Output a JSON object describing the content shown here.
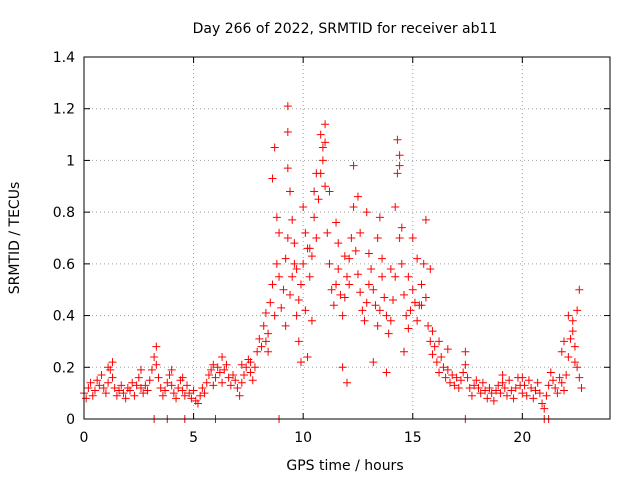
{
  "chart_data": {
    "type": "scatter",
    "title": "Day 266 of 2022, SRMTID for receiver ab11",
    "xlabel": "GPS time / hours",
    "ylabel": "SRMTID / TECUs",
    "xlim": [
      0,
      24
    ],
    "ylim": [
      0,
      1.4
    ],
    "x_ticks": [
      0,
      5,
      10,
      15,
      20
    ],
    "x_tick_labels": [
      "0",
      "5",
      "10",
      "15",
      "20"
    ],
    "y_ticks": [
      0,
      0.2,
      0.4,
      0.6,
      0.8,
      1.0,
      1.2,
      1.4
    ],
    "y_tick_labels": [
      "0",
      "0.2",
      "0.4",
      "0.6",
      "0.8",
      "1",
      "1.2",
      "1.4"
    ],
    "grid": true,
    "marker": "+",
    "series": [
      {
        "name": "SRMTID",
        "color": "#ff0000",
        "points": [
          [
            0.0,
            0.1
          ],
          [
            0.1,
            0.08
          ],
          [
            0.2,
            0.12
          ],
          [
            0.3,
            0.14
          ],
          [
            0.4,
            0.09
          ],
          [
            0.5,
            0.11
          ],
          [
            0.6,
            0.15
          ],
          [
            0.7,
            0.13
          ],
          [
            0.8,
            0.17
          ],
          [
            0.9,
            0.12
          ],
          [
            1.0,
            0.1
          ],
          [
            1.1,
            0.14
          ],
          [
            1.2,
            0.19
          ],
          [
            1.3,
            0.16
          ],
          [
            1.4,
            0.12
          ],
          [
            1.5,
            0.09
          ],
          [
            1.6,
            0.11
          ],
          [
            1.7,
            0.13
          ],
          [
            1.8,
            0.1
          ],
          [
            1.9,
            0.08
          ],
          [
            2.0,
            0.12
          ],
          [
            2.1,
            0.11
          ],
          [
            2.2,
            0.14
          ],
          [
            2.3,
            0.09
          ],
          [
            2.4,
            0.13
          ],
          [
            2.5,
            0.16
          ],
          [
            2.6,
            0.12
          ],
          [
            2.7,
            0.1
          ],
          [
            2.8,
            0.13
          ],
          [
            2.9,
            0.11
          ],
          [
            3.0,
            0.15
          ],
          [
            3.1,
            0.19
          ],
          [
            3.2,
            0.24
          ],
          [
            3.3,
            0.28
          ],
          [
            3.4,
            0.16
          ],
          [
            3.5,
            0.12
          ],
          [
            3.6,
            0.09
          ],
          [
            3.7,
            0.11
          ],
          [
            3.8,
            0.14
          ],
          [
            3.9,
            0.17
          ],
          [
            4.0,
            0.13
          ],
          [
            4.1,
            0.1
          ],
          [
            4.2,
            0.08
          ],
          [
            4.3,
            0.12
          ],
          [
            4.4,
            0.15
          ],
          [
            4.5,
            0.11
          ],
          [
            4.6,
            0.09
          ],
          [
            4.7,
            0.13
          ],
          [
            4.8,
            0.1
          ],
          [
            4.9,
            0.08
          ],
          [
            5.0,
            0.11
          ],
          [
            5.1,
            0.07
          ],
          [
            5.2,
            0.06
          ],
          [
            5.3,
            0.09
          ],
          [
            5.4,
            0.12
          ],
          [
            5.5,
            0.1
          ],
          [
            5.6,
            0.14
          ],
          [
            5.7,
            0.17
          ],
          [
            5.8,
            0.19
          ],
          [
            5.9,
            0.13
          ],
          [
            6.0,
            0.16
          ],
          [
            6.1,
            0.2
          ],
          [
            6.2,
            0.18
          ],
          [
            6.3,
            0.14
          ],
          [
            6.4,
            0.19
          ],
          [
            6.5,
            0.21
          ],
          [
            6.6,
            0.16
          ],
          [
            6.7,
            0.13
          ],
          [
            6.8,
            0.17
          ],
          [
            6.9,
            0.15
          ],
          [
            7.0,
            0.12
          ],
          [
            7.1,
            0.09
          ],
          [
            7.2,
            0.14
          ],
          [
            7.3,
            0.17
          ],
          [
            7.4,
            0.2
          ],
          [
            7.5,
            0.23
          ],
          [
            7.6,
            0.18
          ],
          [
            7.7,
            0.15
          ],
          [
            7.8,
            0.2
          ],
          [
            7.9,
            0.26
          ],
          [
            8.0,
            0.31
          ],
          [
            8.1,
            0.28
          ],
          [
            8.2,
            0.36
          ],
          [
            8.3,
            0.41
          ],
          [
            8.4,
            0.33
          ],
          [
            8.5,
            0.45
          ],
          [
            8.6,
            0.52
          ],
          [
            8.7,
            0.4
          ],
          [
            8.8,
            0.6
          ],
          [
            8.9,
            0.55
          ],
          [
            9.0,
            0.43
          ],
          [
            9.1,
            0.5
          ],
          [
            9.2,
            0.62
          ],
          [
            9.3,
            0.7
          ],
          [
            9.4,
            0.48
          ],
          [
            9.5,
            0.55
          ],
          [
            9.6,
            0.68
          ],
          [
            9.7,
            0.58
          ],
          [
            9.8,
            0.46
          ],
          [
            9.9,
            0.52
          ],
          [
            10.0,
            0.6
          ],
          [
            10.1,
            0.72
          ],
          [
            10.2,
            0.66
          ],
          [
            10.3,
            0.55
          ],
          [
            10.4,
            0.63
          ],
          [
            10.5,
            0.78
          ],
          [
            10.6,
            0.7
          ],
          [
            10.7,
            0.85
          ],
          [
            10.8,
            0.95
          ],
          [
            10.9,
            1.05
          ],
          [
            11.0,
            0.9
          ],
          [
            11.1,
            0.72
          ],
          [
            11.2,
            0.6
          ],
          [
            11.3,
            0.5
          ],
          [
            11.4,
            0.44
          ],
          [
            11.5,
            0.52
          ],
          [
            11.6,
            0.58
          ],
          [
            11.7,
            0.48
          ],
          [
            11.8,
            0.4
          ],
          [
            11.9,
            0.47
          ],
          [
            12.0,
            0.55
          ],
          [
            12.1,
            0.62
          ],
          [
            12.2,
            0.7
          ],
          [
            12.3,
            0.82
          ],
          [
            12.4,
            0.65
          ],
          [
            12.5,
            0.56
          ],
          [
            12.6,
            0.49
          ],
          [
            12.7,
            0.42
          ],
          [
            12.8,
            0.38
          ],
          [
            12.9,
            0.45
          ],
          [
            13.0,
            0.52
          ],
          [
            13.1,
            0.58
          ],
          [
            13.2,
            0.5
          ],
          [
            13.3,
            0.44
          ],
          [
            13.4,
            0.36
          ],
          [
            13.5,
            0.42
          ],
          [
            13.6,
            0.55
          ],
          [
            13.7,
            0.47
          ],
          [
            13.8,
            0.4
          ],
          [
            13.9,
            0.33
          ],
          [
            14.0,
            0.38
          ],
          [
            14.1,
            0.46
          ],
          [
            14.2,
            0.55
          ],
          [
            14.3,
            0.95
          ],
          [
            14.4,
            0.7
          ],
          [
            14.5,
            0.6
          ],
          [
            14.6,
            0.48
          ],
          [
            14.7,
            0.4
          ],
          [
            14.8,
            0.35
          ],
          [
            14.9,
            0.42
          ],
          [
            15.0,
            0.5
          ],
          [
            15.1,
            0.45
          ],
          [
            15.2,
            0.38
          ],
          [
            15.3,
            0.44
          ],
          [
            15.4,
            0.52
          ],
          [
            15.5,
            0.6
          ],
          [
            15.6,
            0.47
          ],
          [
            15.7,
            0.36
          ],
          [
            15.8,
            0.3
          ],
          [
            15.9,
            0.25
          ],
          [
            16.0,
            0.28
          ],
          [
            16.1,
            0.22
          ],
          [
            16.2,
            0.18
          ],
          [
            16.3,
            0.24
          ],
          [
            16.4,
            0.2
          ],
          [
            16.5,
            0.16
          ],
          [
            16.6,
            0.19
          ],
          [
            16.7,
            0.14
          ],
          [
            16.8,
            0.17
          ],
          [
            16.9,
            0.13
          ],
          [
            17.0,
            0.16
          ],
          [
            17.1,
            0.12
          ],
          [
            17.2,
            0.15
          ],
          [
            17.3,
            0.18
          ],
          [
            17.4,
            0.21
          ],
          [
            17.5,
            0.16
          ],
          [
            17.6,
            0.12
          ],
          [
            17.7,
            0.09
          ],
          [
            17.8,
            0.13
          ],
          [
            17.9,
            0.15
          ],
          [
            18.0,
            0.12
          ],
          [
            18.1,
            0.1
          ],
          [
            18.2,
            0.14
          ],
          [
            18.3,
            0.11
          ],
          [
            18.4,
            0.08
          ],
          [
            18.5,
            0.12
          ],
          [
            18.6,
            0.1
          ],
          [
            18.7,
            0.07
          ],
          [
            18.8,
            0.11
          ],
          [
            18.9,
            0.13
          ],
          [
            19.0,
            0.1
          ],
          [
            19.1,
            0.14
          ],
          [
            19.2,
            0.12
          ],
          [
            19.3,
            0.09
          ],
          [
            19.4,
            0.15
          ],
          [
            19.5,
            0.11
          ],
          [
            19.6,
            0.08
          ],
          [
            19.7,
            0.12
          ],
          [
            19.8,
            0.16
          ],
          [
            19.9,
            0.13
          ],
          [
            20.0,
            0.1
          ],
          [
            20.1,
            0.13
          ],
          [
            20.2,
            0.09
          ],
          [
            20.3,
            0.15
          ],
          [
            20.4,
            0.12
          ],
          [
            20.5,
            0.08
          ],
          [
            20.6,
            0.11
          ],
          [
            20.7,
            0.14
          ],
          [
            20.8,
            0.1
          ],
          [
            20.9,
            0.06
          ],
          [
            21.0,
            0.04
          ],
          [
            21.1,
            0.09
          ],
          [
            21.2,
            0.13
          ],
          [
            21.3,
            0.18
          ],
          [
            21.4,
            0.15
          ],
          [
            21.5,
            0.12
          ],
          [
            21.6,
            0.1
          ],
          [
            21.7,
            0.16
          ],
          [
            21.8,
            0.14
          ],
          [
            21.9,
            0.11
          ],
          [
            22.0,
            0.17
          ],
          [
            22.1,
            0.24
          ],
          [
            22.2,
            0.31
          ],
          [
            22.3,
            0.38
          ],
          [
            22.4,
            0.28
          ],
          [
            22.5,
            0.2
          ],
          [
            22.6,
            0.16
          ],
          [
            22.7,
            0.12
          ],
          [
            9.3,
            1.21
          ],
          [
            9.3,
            1.11
          ],
          [
            8.7,
            1.05
          ],
          [
            9.3,
            0.97
          ],
          [
            9.4,
            0.88
          ],
          [
            8.6,
            0.93
          ],
          [
            11.0,
            1.14
          ],
          [
            10.8,
            1.1
          ],
          [
            10.9,
            1.0
          ],
          [
            11.0,
            1.07
          ],
          [
            10.6,
            0.95
          ],
          [
            10.5,
            0.88
          ],
          [
            11.2,
            0.88
          ],
          [
            12.3,
            0.98
          ],
          [
            12.5,
            0.86
          ],
          [
            12.9,
            0.8
          ],
          [
            13.5,
            0.78
          ],
          [
            14.3,
            1.08
          ],
          [
            14.4,
            1.02
          ],
          [
            14.4,
            0.98
          ],
          [
            14.2,
            0.82
          ],
          [
            14.5,
            0.74
          ],
          [
            15.0,
            0.7
          ],
          [
            15.6,
            0.77
          ],
          [
            15.8,
            0.58
          ],
          [
            8.8,
            0.78
          ],
          [
            8.9,
            0.72
          ],
          [
            9.5,
            0.77
          ],
          [
            10.0,
            0.82
          ],
          [
            10.3,
            0.66
          ],
          [
            9.6,
            0.6
          ],
          [
            10.1,
            0.42
          ],
          [
            10.4,
            0.38
          ],
          [
            11.5,
            0.76
          ],
          [
            11.6,
            0.68
          ],
          [
            11.9,
            0.63
          ],
          [
            12.1,
            0.52
          ],
          [
            12.6,
            0.72
          ],
          [
            13.0,
            0.64
          ],
          [
            13.4,
            0.7
          ],
          [
            13.6,
            0.62
          ],
          [
            14.0,
            0.58
          ],
          [
            14.8,
            0.55
          ],
          [
            15.2,
            0.62
          ],
          [
            15.4,
            0.44
          ],
          [
            9.7,
            0.4
          ],
          [
            9.8,
            0.3
          ],
          [
            9.2,
            0.36
          ],
          [
            8.4,
            0.26
          ],
          [
            8.3,
            0.3
          ],
          [
            9.9,
            0.22
          ],
          [
            10.2,
            0.24
          ],
          [
            11.8,
            0.2
          ],
          [
            12.0,
            0.14
          ],
          [
            13.2,
            0.22
          ],
          [
            13.8,
            0.18
          ],
          [
            14.6,
            0.26
          ],
          [
            15.9,
            0.34
          ],
          [
            16.2,
            0.3
          ],
          [
            16.6,
            0.27
          ],
          [
            1.1,
            0.2
          ],
          [
            1.3,
            0.22
          ],
          [
            2.6,
            0.19
          ],
          [
            3.3,
            0.21
          ],
          [
            4.0,
            0.19
          ],
          [
            4.5,
            0.16
          ],
          [
            5.9,
            0.21
          ],
          [
            6.3,
            0.24
          ],
          [
            7.2,
            0.21
          ],
          [
            7.6,
            0.22
          ],
          [
            22.6,
            0.5
          ],
          [
            22.5,
            0.42
          ],
          [
            22.1,
            0.4
          ],
          [
            22.3,
            0.34
          ],
          [
            21.9,
            0.3
          ],
          [
            21.8,
            0.26
          ],
          [
            22.4,
            0.22
          ],
          [
            20.0,
            0.16
          ],
          [
            19.1,
            0.17
          ],
          [
            17.4,
            0.26
          ],
          [
            3.2,
            0.0
          ],
          [
            3.8,
            0.0
          ],
          [
            4.6,
            0.0
          ],
          [
            6.0,
            0.0
          ],
          [
            8.9,
            0.0
          ],
          [
            17.4,
            0.0
          ],
          [
            21.0,
            0.0
          ],
          [
            21.2,
            0.0
          ]
        ]
      }
    ]
  }
}
